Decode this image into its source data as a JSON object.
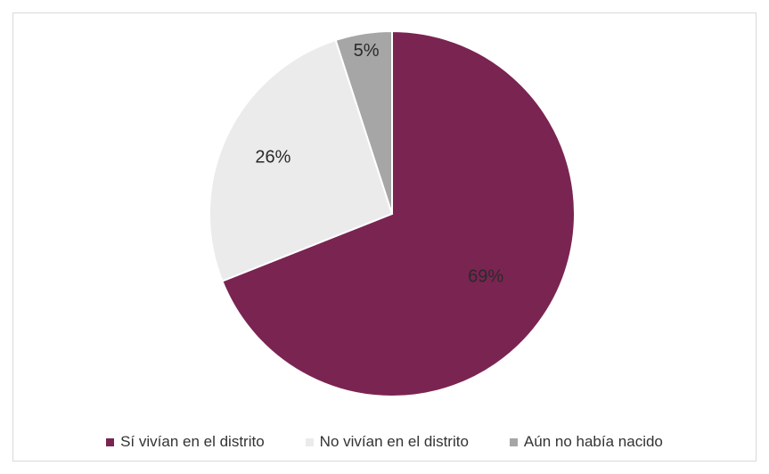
{
  "chart_data": {
    "type": "pie",
    "categories": [
      "Sí vivían en el distrito",
      "No vivían en el distrito",
      "Aún no había nacido"
    ],
    "values": [
      69,
      26,
      5
    ],
    "labels": [
      "69%",
      "26%",
      "5%"
    ],
    "colors": [
      "#7a2452",
      "#ebebeb",
      "#a6a6a6"
    ],
    "legend_position": "bottom",
    "title": ""
  }
}
